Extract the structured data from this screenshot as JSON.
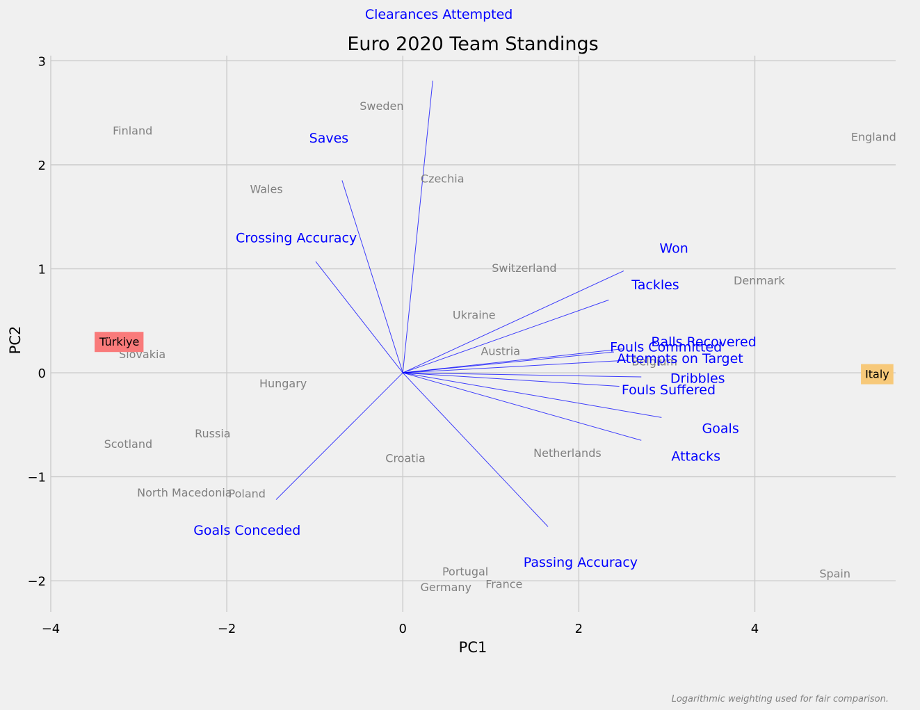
{
  "chart_data": {
    "type": "scatter",
    "title": "Euro 2020 Team Standings",
    "xlabel": "PC1",
    "ylabel": "PC2",
    "xlim": [
      -4,
      5.6
    ],
    "ylim": [
      -2.3,
      3.05
    ],
    "xticks": [
      -4,
      -2,
      0,
      2,
      4
    ],
    "yticks": [
      -2,
      -1,
      0,
      1,
      2,
      3
    ],
    "grid": true,
    "footnote": "Logarithmic weighting used for fair comparison.",
    "teams": [
      {
        "name": "England",
        "x": 5.35,
        "y": 2.27
      },
      {
        "name": "Sweden",
        "x": -0.24,
        "y": 2.57
      },
      {
        "name": "Finland",
        "x": -3.07,
        "y": 2.33
      },
      {
        "name": "Wales",
        "x": -1.55,
        "y": 1.77
      },
      {
        "name": "Czechia",
        "x": 0.45,
        "y": 1.87
      },
      {
        "name": "Switzerland",
        "x": 1.38,
        "y": 1.01
      },
      {
        "name": "Denmark",
        "x": 4.05,
        "y": 0.89
      },
      {
        "name": "Ukraine",
        "x": 0.81,
        "y": 0.56
      },
      {
        "name": "Austria",
        "x": 1.11,
        "y": 0.21
      },
      {
        "name": "Belgium",
        "x": 2.86,
        "y": 0.11
      },
      {
        "name": "Slovakia",
        "x": -2.96,
        "y": 0.18
      },
      {
        "name": "Hungary",
        "x": -1.36,
        "y": -0.1
      },
      {
        "name": "Russia",
        "x": -2.16,
        "y": -0.58
      },
      {
        "name": "Scotland",
        "x": -3.12,
        "y": -0.68
      },
      {
        "name": "Croatia",
        "x": 0.03,
        "y": -0.82
      },
      {
        "name": "Netherlands",
        "x": 1.87,
        "y": -0.77
      },
      {
        "name": "North Macedonia",
        "x": -2.48,
        "y": -1.15
      },
      {
        "name": "Poland",
        "x": -1.77,
        "y": -1.16
      },
      {
        "name": "Portugal",
        "x": 0.71,
        "y": -1.91
      },
      {
        "name": "Germany",
        "x": 0.49,
        "y": -2.06
      },
      {
        "name": "France",
        "x": 1.15,
        "y": -2.03
      },
      {
        "name": "Spain",
        "x": 4.91,
        "y": -1.93
      }
    ],
    "highlights": [
      {
        "name": "Türkiye",
        "x": -3.22,
        "y": 0.3,
        "color": "#f97a7a"
      },
      {
        "name": "Italy",
        "x": 5.39,
        "y": -0.01,
        "color": "#f7c97a"
      }
    ],
    "vectors": [
      {
        "name": "Clearances Attempted",
        "x": 0.34,
        "y": 2.81,
        "label_x": 0.41,
        "label_y": 3.45
      },
      {
        "name": "Saves",
        "x": -0.69,
        "y": 1.85,
        "label_x": -0.84,
        "label_y": 2.26
      },
      {
        "name": "Crossing Accuracy",
        "x": -0.99,
        "y": 1.07,
        "label_x": -1.21,
        "label_y": 1.3
      },
      {
        "name": "Won",
        "x": 2.51,
        "y": 0.98,
        "label_x": 3.08,
        "label_y": 1.2
      },
      {
        "name": "Tackles",
        "x": 2.34,
        "y": 0.7,
        "label_x": 2.87,
        "label_y": 0.85
      },
      {
        "name": "Balls Recovered",
        "x": 2.5,
        "y": 0.23,
        "label_x": 3.42,
        "label_y": 0.3
      },
      {
        "name": "Fouls Committed",
        "x": 2.4,
        "y": 0.2,
        "label_x": 2.99,
        "label_y": 0.25
      },
      {
        "name": "Attempts on Target",
        "x": 2.55,
        "y": 0.12,
        "label_x": 3.15,
        "label_y": 0.14
      },
      {
        "name": "Dribbles",
        "x": 2.71,
        "y": -0.04,
        "label_x": 3.35,
        "label_y": -0.05
      },
      {
        "name": "Fouls Suffered",
        "x": 2.46,
        "y": -0.13,
        "label_x": 3.02,
        "label_y": -0.16
      },
      {
        "name": "Goals",
        "x": 2.94,
        "y": -0.43,
        "label_x": 3.61,
        "label_y": -0.53
      },
      {
        "name": "Attacks",
        "x": 2.71,
        "y": -0.65,
        "label_x": 3.33,
        "label_y": -0.8
      },
      {
        "name": "Goals Conceded",
        "x": -1.44,
        "y": -1.22,
        "label_x": -1.77,
        "label_y": -1.51
      },
      {
        "name": "Passing Accuracy",
        "x": 1.65,
        "y": -1.48,
        "label_x": 2.02,
        "label_y": -1.82
      }
    ]
  }
}
